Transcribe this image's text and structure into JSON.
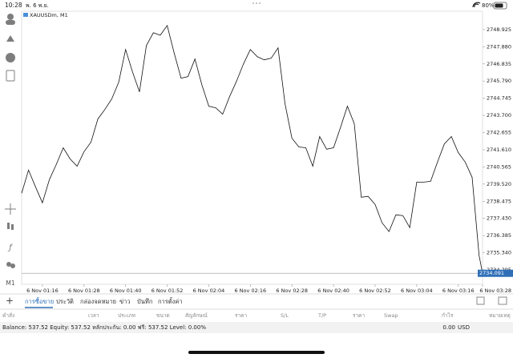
{
  "status_bar": {
    "time": "10:28",
    "date": "พ. 6 พ.ย.",
    "battery": "80%"
  },
  "sidebar": {
    "timeframe": "M1"
  },
  "chart_data": {
    "type": "line",
    "title": "XAUUSDm, M1",
    "color": "#111111",
    "grid": false,
    "x": [
      "6 Nov 01:10",
      "6 Nov 01:12",
      "6 Nov 01:14",
      "6 Nov 01:16",
      "6 Nov 01:18",
      "6 Nov 01:20",
      "6 Nov 01:22",
      "6 Nov 01:24",
      "6 Nov 01:26",
      "6 Nov 01:28",
      "6 Nov 01:30",
      "6 Nov 01:32",
      "6 Nov 01:34",
      "6 Nov 01:36",
      "6 Nov 01:38",
      "6 Nov 01:40",
      "6 Nov 01:42",
      "6 Nov 01:44",
      "6 Nov 01:46",
      "6 Nov 01:48",
      "6 Nov 01:50",
      "6 Nov 01:52",
      "6 Nov 01:54",
      "6 Nov 01:56",
      "6 Nov 01:58",
      "6 Nov 02:00",
      "6 Nov 02:02",
      "6 Nov 02:04",
      "6 Nov 02:06",
      "6 Nov 02:08",
      "6 Nov 02:10",
      "6 Nov 02:12",
      "6 Nov 02:14",
      "6 Nov 02:16",
      "6 Nov 02:18",
      "6 Nov 02:20",
      "6 Nov 02:22",
      "6 Nov 02:24",
      "6 Nov 02:26",
      "6 Nov 02:28",
      "6 Nov 02:30",
      "6 Nov 02:32",
      "6 Nov 02:34",
      "6 Nov 02:36",
      "6 Nov 02:38",
      "6 Nov 02:40",
      "6 Nov 02:42",
      "6 Nov 02:44",
      "6 Nov 02:46",
      "6 Nov 02:48",
      "6 Nov 02:50",
      "6 Nov 02:52",
      "6 Nov 02:54",
      "6 Nov 02:56",
      "6 Nov 02:58",
      "6 Nov 03:00",
      "6 Nov 03:02",
      "6 Nov 03:04",
      "6 Nov 03:06",
      "6 Nov 03:08",
      "6 Nov 03:10",
      "6 Nov 03:12",
      "6 Nov 03:14",
      "6 Nov 03:16",
      "6 Nov 03:18",
      "6 Nov 03:20",
      "6 Nov 03:22",
      "6 Nov 03:23"
    ],
    "values": [
      2738.96,
      2740.37,
      2739.35,
      2738.38,
      2739.79,
      2740.71,
      2741.73,
      2741.05,
      2740.61,
      2741.49,
      2742.07,
      2743.48,
      2744.06,
      2744.7,
      2745.72,
      2747.71,
      2746.35,
      2745.13,
      2747.95,
      2748.73,
      2748.58,
      2749.17,
      2747.51,
      2745.96,
      2746.06,
      2747.13,
      2745.57,
      2744.26,
      2744.16,
      2743.77,
      2744.84,
      2745.77,
      2746.83,
      2747.71,
      2747.27,
      2747.08,
      2747.18,
      2747.81,
      2744.4,
      2742.31,
      2741.78,
      2741.73,
      2740.61,
      2742.41,
      2741.64,
      2741.73,
      2742.95,
      2744.26,
      2743.19,
      2738.72,
      2738.77,
      2738.28,
      2737.17,
      2736.63,
      2737.65,
      2737.6,
      2736.87,
      2739.64,
      2739.64,
      2739.69,
      2740.86,
      2741.97,
      2742.41,
      2741.44,
      2740.86,
      2739.93,
      2735.17,
      2734.091
    ],
    "xlim": [
      "6 Nov 01:10",
      "6 Nov 03:23"
    ],
    "xticks": [
      "6 Nov 01:16",
      "6 Nov 01:28",
      "6 Nov 01:40",
      "6 Nov 01:52",
      "6 Nov 02:04",
      "6 Nov 02:16",
      "6 Nov 02:28",
      "6 Nov 02:40",
      "6 Nov 02:52",
      "6 Nov 03:04",
      "6 Nov 03:16",
      "6 Nov 03:28"
    ],
    "ylim": [
      2733.42,
      2750.04
    ],
    "yticks": [
      2748.925,
      {
        "value": 2747.88,
        "label": "2747.880"
      },
      2746.835,
      {
        "value": 2745.79,
        "label": "2745.790"
      },
      2744.745,
      {
        "value": 2743.7,
        "label": "2743.700"
      },
      2742.655,
      {
        "value": 2741.61,
        "label": "2741.610"
      },
      2740.565,
      {
        "value": 2739.52,
        "label": "2739.520"
      },
      2738.475,
      {
        "value": 2737.43,
        "label": "2737.430"
      },
      2736.385,
      {
        "value": 2735.34,
        "label": "2735.340"
      },
      2734.295
    ],
    "current_price": 2734.091
  },
  "tabs": [
    "การซื้อขาย",
    "ประวัติ",
    "กล่องจดหมาย",
    "ข่าว",
    "บันทึก",
    "การตั้งค่า"
  ],
  "table": {
    "headers": [
      "คำสั่ง",
      "เวลา",
      "ประเภท",
      "ขนาด",
      "สัญลักษณ์",
      "ราคา",
      "S/L",
      "T/P",
      "ราคา",
      "Swap",
      "กำไร",
      "หมายเหตุ"
    ]
  },
  "footer": {
    "summary": "Balance: 537.52 Equity: 537.52 หลักประกัน: 0.00 ฟรี: 537.52 Level: 0.00%",
    "profit": "0.00",
    "currency": "USD"
  }
}
